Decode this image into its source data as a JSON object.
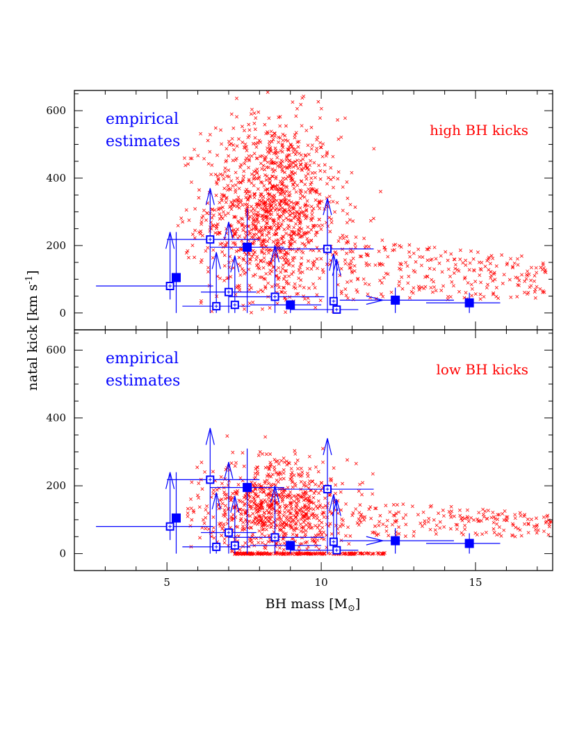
{
  "figure": {
    "xlabel": "BH mass [M",
    "xlabel_sub": "⊙",
    "xlabel_close": "]",
    "ylabel": "natal kick [km s",
    "ylabel_sup": "-1",
    "ylabel_close": "]"
  },
  "colors": {
    "model": "#ff0000",
    "empirical": "#0000ff",
    "axes": "#000000"
  },
  "chart_data": [
    {
      "type": "scatter",
      "panel": "top",
      "label": "high BH kicks",
      "annotation": [
        "empirical",
        "estimates"
      ],
      "xlim": [
        2.0,
        17.5
      ],
      "ylim": [
        -50,
        660
      ],
      "xticks": [
        5,
        10,
        15
      ],
      "yticks": [
        0,
        200,
        400,
        600
      ],
      "show_xtick_labels": false,
      "model_cloud": {
        "marker": "x",
        "approx_count": 1500,
        "core": {
          "x": 8.4,
          "y": 300,
          "sx": 1.1,
          "sy": 140
        },
        "tail": {
          "x_range": [
            10.5,
            17.3
          ],
          "y_range": [
            40,
            240
          ]
        },
        "x_range": [
          5.2,
          17.3
        ],
        "y_range": [
          0,
          660
        ]
      }
    },
    {
      "type": "scatter",
      "panel": "bottom",
      "label": "low BH kicks",
      "annotation": [
        "empirical",
        "estimates"
      ],
      "xlim": [
        2.0,
        17.5
      ],
      "ylim": [
        -50,
        660
      ],
      "xticks": [
        5,
        10,
        15
      ],
      "yticks": [
        0,
        200,
        400,
        600
      ],
      "xtick_labels": [
        "5",
        "10",
        "15"
      ],
      "model_cloud": {
        "marker": "x",
        "approx_count": 1000,
        "core": {
          "x": 8.5,
          "y": 130,
          "sx": 1.2,
          "sy": 70
        },
        "tail": {
          "x_range": [
            11.0,
            17.5
          ],
          "y_range": [
            50,
            160
          ]
        },
        "x_range": [
          5.5,
          17.5
        ],
        "y_range": [
          0,
          360
        ],
        "zero_kick_band": {
          "x_range": [
            7.2,
            12.1
          ],
          "y": 0
        }
      }
    }
  ],
  "empirical_points": [
    {
      "x": 5.1,
      "y": 80,
      "marker": "open",
      "xerr": [
        2.7,
        6.5
      ],
      "yerr": [
        40,
        240
      ],
      "arrow_up": true
    },
    {
      "x": 5.3,
      "y": 105,
      "marker": "filled",
      "xerr": [
        5.3,
        5.3
      ],
      "yerr": [
        0,
        240
      ],
      "arrow_up": false
    },
    {
      "x": 6.4,
      "y": 218,
      "marker": "open",
      "xerr": [
        5.0,
        8.0
      ],
      "yerr": [
        0,
        370
      ],
      "arrow_up": true
    },
    {
      "x": 6.6,
      "y": 20,
      "marker": "open",
      "xerr": [
        5.5,
        7.7
      ],
      "yerr": [
        0,
        180
      ],
      "arrow_up": true
    },
    {
      "x": 7.0,
      "y": 62,
      "marker": "open",
      "xerr": [
        6.1,
        7.9
      ],
      "yerr": [
        0,
        270
      ],
      "arrow_up": true
    },
    {
      "x": 7.2,
      "y": 24,
      "marker": "open",
      "xerr": [
        7.2,
        7.2
      ],
      "yerr": [
        0,
        170
      ],
      "arrow_up": true
    },
    {
      "x": 7.6,
      "y": 195,
      "marker": "filled",
      "xerr": [
        6.4,
        8.8
      ],
      "yerr": [
        0,
        310
      ],
      "arrow_up": false
    },
    {
      "x": 8.5,
      "y": 48,
      "marker": "open",
      "xerr": [
        7.0,
        10.1
      ],
      "yerr": [
        0,
        200
      ],
      "arrow_up": true
    },
    {
      "x": 9.0,
      "y": 24,
      "marker": "filled",
      "xerr": [
        7.7,
        10.0
      ],
      "yerr": [
        0,
        24
      ],
      "arrow_up": false
    },
    {
      "x": 10.2,
      "y": 190,
      "marker": "open",
      "xerr": [
        8.5,
        11.7
      ],
      "yerr": [
        0,
        340
      ],
      "arrow_up": true
    },
    {
      "x": 10.4,
      "y": 35,
      "marker": "open",
      "xerr": [
        10.4,
        10.4
      ],
      "yerr": [
        0,
        175
      ],
      "arrow_up": true
    },
    {
      "x": 10.5,
      "y": 10,
      "marker": "open",
      "xerr": [
        9.0,
        11.2
      ],
      "yerr": [
        0,
        160
      ],
      "arrow_up": true
    },
    {
      "x": 12.4,
      "y": 38,
      "marker": "filled",
      "xerr": [
        10.6,
        14.3
      ],
      "yerr": [
        0,
        75
      ],
      "arrow_up": false,
      "x_arrow_from": 10.6,
      "x_arrow_to": 12.0
    },
    {
      "x": 14.8,
      "y": 30,
      "marker": "filled",
      "xerr": [
        13.4,
        15.8
      ],
      "yerr": [
        0,
        60
      ],
      "arrow_up": false
    }
  ]
}
